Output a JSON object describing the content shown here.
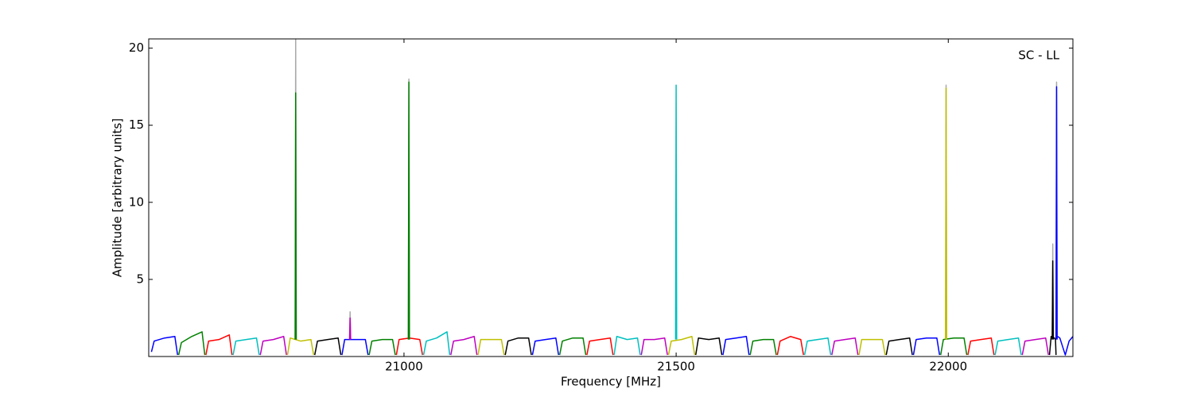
{
  "chart_data": {
    "type": "line",
    "annotation": "SC - LL",
    "xlabel": "Frequency [MHz]",
    "ylabel": "Amplitude [arbitrary units]",
    "xlim": [
      20531,
      22229
    ],
    "ylim": [
      0,
      20.6
    ],
    "xticks": [
      21000,
      21500,
      22000
    ],
    "yticks": [
      5,
      10,
      15,
      20
    ],
    "series": [
      {
        "color": "#aaaaaa",
        "x": [
          20800,
          20801,
          20802
        ],
        "values": [
          1.1,
          20.6,
          1.1
        ]
      },
      {
        "color": "#aaaaaa",
        "x": [
          20900,
          20901,
          20902
        ],
        "values": [
          1.1,
          2.9,
          1.1
        ]
      },
      {
        "color": "#aaaaaa",
        "x": [
          21008,
          21009,
          21010
        ],
        "values": [
          1.1,
          18.0,
          1.1
        ]
      },
      {
        "color": "#aaaaaa",
        "x": [
          21995,
          21996,
          21997
        ],
        "values": [
          1.1,
          17.6,
          1.1
        ]
      },
      {
        "color": "#aaaaaa",
        "x": [
          22191,
          22192,
          22193
        ],
        "values": [
          1.1,
          7.3,
          1.1
        ]
      },
      {
        "color": "#aaaaaa",
        "x": [
          22198,
          22199,
          22200
        ],
        "values": [
          1.1,
          17.8,
          1.1
        ]
      },
      {
        "color": "#0000ff",
        "x": [
          20536,
          20541,
          20560,
          20579,
          20584
        ],
        "values": [
          0.3,
          1.0,
          1.2,
          1.3,
          0.1
        ]
      },
      {
        "color": "#008000",
        "x": [
          20586,
          20591,
          20610,
          20629,
          20634
        ],
        "values": [
          0.1,
          0.9,
          1.3,
          1.6,
          0.1
        ]
      },
      {
        "color": "#ff0000",
        "x": [
          20636,
          20641,
          20660,
          20679,
          20684
        ],
        "values": [
          0.1,
          1.0,
          1.1,
          1.4,
          0.1
        ]
      },
      {
        "color": "#00bfbf",
        "x": [
          20686,
          20691,
          20710,
          20729,
          20734
        ],
        "values": [
          0.1,
          1.0,
          1.1,
          1.2,
          0.1
        ]
      },
      {
        "color": "#bf00bf",
        "x": [
          20736,
          20741,
          20760,
          20779,
          20784
        ],
        "values": [
          0.1,
          1.0,
          1.1,
          1.3,
          0.1
        ]
      },
      {
        "color": "#bfbf00",
        "x": [
          20786,
          20791,
          20810,
          20829,
          20834
        ],
        "values": [
          0.1,
          1.2,
          1.0,
          1.1,
          0.1
        ]
      },
      {
        "color": "#000000",
        "x": [
          20836,
          20841,
          20860,
          20879,
          20884
        ],
        "values": [
          0.1,
          1.0,
          1.1,
          1.2,
          0.1
        ]
      },
      {
        "color": "#0000ff",
        "x": [
          20886,
          20891,
          20910,
          20929,
          20934
        ],
        "values": [
          0.1,
          1.1,
          1.1,
          1.1,
          0.1
        ]
      },
      {
        "color": "#008000",
        "x": [
          20936,
          20941,
          20960,
          20979,
          20984
        ],
        "values": [
          0.1,
          1.0,
          1.1,
          1.1,
          0.1
        ]
      },
      {
        "color": "#ff0000",
        "x": [
          20986,
          20991,
          21010,
          21029,
          21034
        ],
        "values": [
          0.1,
          1.1,
          1.2,
          1.1,
          0.1
        ]
      },
      {
        "color": "#00bfbf",
        "x": [
          21036,
          21041,
          21060,
          21079,
          21084
        ],
        "values": [
          0.1,
          1.0,
          1.2,
          1.6,
          0.1
        ]
      },
      {
        "color": "#bf00bf",
        "x": [
          21086,
          21091,
          21110,
          21129,
          21134
        ],
        "values": [
          0.1,
          1.0,
          1.1,
          1.3,
          0.1
        ]
      },
      {
        "color": "#bfbf00",
        "x": [
          21136,
          21141,
          21160,
          21179,
          21184
        ],
        "values": [
          0.1,
          1.1,
          1.1,
          1.1,
          0.1
        ]
      },
      {
        "color": "#000000",
        "x": [
          21186,
          21191,
          21210,
          21229,
          21234
        ],
        "values": [
          0.1,
          1.0,
          1.2,
          1.2,
          0.1
        ]
      },
      {
        "color": "#0000ff",
        "x": [
          21236,
          21241,
          21260,
          21279,
          21284
        ],
        "values": [
          0.1,
          1.0,
          1.1,
          1.2,
          0.1
        ]
      },
      {
        "color": "#008000",
        "x": [
          21286,
          21291,
          21310,
          21329,
          21334
        ],
        "values": [
          0.1,
          1.0,
          1.2,
          1.2,
          0.1
        ]
      },
      {
        "color": "#ff0000",
        "x": [
          21336,
          21341,
          21360,
          21379,
          21384
        ],
        "values": [
          0.1,
          1.0,
          1.1,
          1.2,
          0.1
        ]
      },
      {
        "color": "#00bfbf",
        "x": [
          21386,
          21391,
          21410,
          21429,
          21434
        ],
        "values": [
          0.1,
          1.3,
          1.1,
          1.2,
          0.1
        ]
      },
      {
        "color": "#bf00bf",
        "x": [
          21436,
          21441,
          21460,
          21479,
          21484
        ],
        "values": [
          0.1,
          1.1,
          1.1,
          1.2,
          0.1
        ]
      },
      {
        "color": "#bfbf00",
        "x": [
          21486,
          21491,
          21510,
          21529,
          21534
        ],
        "values": [
          0.1,
          1.0,
          1.1,
          1.3,
          0.1
        ]
      },
      {
        "color": "#000000",
        "x": [
          21536,
          21541,
          21560,
          21579,
          21584
        ],
        "values": [
          0.1,
          1.2,
          1.1,
          1.2,
          0.1
        ]
      },
      {
        "color": "#0000ff",
        "x": [
          21586,
          21591,
          21610,
          21629,
          21634
        ],
        "values": [
          0.1,
          1.1,
          1.2,
          1.3,
          0.1
        ]
      },
      {
        "color": "#008000",
        "x": [
          21636,
          21641,
          21660,
          21679,
          21684
        ],
        "values": [
          0.1,
          1.0,
          1.1,
          1.1,
          0.1
        ]
      },
      {
        "color": "#ff0000",
        "x": [
          21686,
          21691,
          21710,
          21729,
          21734
        ],
        "values": [
          0.1,
          1.0,
          1.3,
          1.1,
          0.1
        ]
      },
      {
        "color": "#00bfbf",
        "x": [
          21736,
          21741,
          21760,
          21779,
          21784
        ],
        "values": [
          0.1,
          1.0,
          1.1,
          1.2,
          0.1
        ]
      },
      {
        "color": "#bf00bf",
        "x": [
          21786,
          21791,
          21810,
          21829,
          21834
        ],
        "values": [
          0.1,
          1.0,
          1.1,
          1.2,
          0.1
        ]
      },
      {
        "color": "#bfbf00",
        "x": [
          21836,
          21841,
          21860,
          21879,
          21884
        ],
        "values": [
          0.1,
          1.1,
          1.1,
          1.1,
          0.1
        ]
      },
      {
        "color": "#000000",
        "x": [
          21886,
          21891,
          21910,
          21929,
          21934
        ],
        "values": [
          0.1,
          1.0,
          1.1,
          1.2,
          0.1
        ]
      },
      {
        "color": "#0000ff",
        "x": [
          21936,
          21941,
          21960,
          21979,
          21984
        ],
        "values": [
          0.1,
          1.1,
          1.2,
          1.2,
          0.1
        ]
      },
      {
        "color": "#008000",
        "x": [
          21986,
          21991,
          22010,
          22029,
          22034
        ],
        "values": [
          0.1,
          1.1,
          1.2,
          1.2,
          0.1
        ]
      },
      {
        "color": "#ff0000",
        "x": [
          22036,
          22041,
          22060,
          22079,
          22084
        ],
        "values": [
          0.1,
          1.0,
          1.1,
          1.2,
          0.1
        ]
      },
      {
        "color": "#00bfbf",
        "x": [
          22086,
          22091,
          22110,
          22129,
          22134
        ],
        "values": [
          0.1,
          1.0,
          1.1,
          1.2,
          0.1
        ]
      },
      {
        "color": "#bf00bf",
        "x": [
          22136,
          22141,
          22160,
          22179,
          22184
        ],
        "values": [
          0.1,
          1.0,
          1.1,
          1.2,
          0.1
        ]
      },
      {
        "color": "#000000",
        "x": [
          22186,
          22189,
          22195,
          22197,
          22198
        ],
        "values": [
          0.1,
          1.3,
          1.2,
          1.1,
          0.1
        ]
      },
      {
        "color": "#0000ff",
        "x": [
          22201,
          22205,
          22215,
          22222,
          22229
        ],
        "values": [
          1.3,
          1.2,
          0.1,
          1.0,
          1.3
        ]
      },
      {
        "color": "#008000",
        "x": [
          20800,
          20801,
          20802
        ],
        "values": [
          1.1,
          17.1,
          1.1
        ]
      },
      {
        "color": "#bf00bf",
        "x": [
          20900,
          20901,
          20902
        ],
        "values": [
          1.1,
          2.5,
          1.1
        ]
      },
      {
        "color": "#008000",
        "x": [
          21008,
          21009,
          21010
        ],
        "values": [
          1.1,
          17.8,
          1.1
        ]
      },
      {
        "color": "#00bfbf",
        "x": [
          21499,
          21500,
          21501
        ],
        "values": [
          1.1,
          17.6,
          1.1
        ]
      },
      {
        "color": "#bfbf00",
        "x": [
          21995,
          21996,
          21997
        ],
        "values": [
          1.1,
          17.4,
          1.1
        ]
      },
      {
        "color": "#000000",
        "x": [
          22191,
          22192,
          22193
        ],
        "values": [
          1.1,
          6.2,
          1.1
        ]
      },
      {
        "color": "#0000ff",
        "x": [
          22198,
          22199,
          22200
        ],
        "values": [
          1.1,
          17.5,
          1.1
        ]
      }
    ]
  }
}
